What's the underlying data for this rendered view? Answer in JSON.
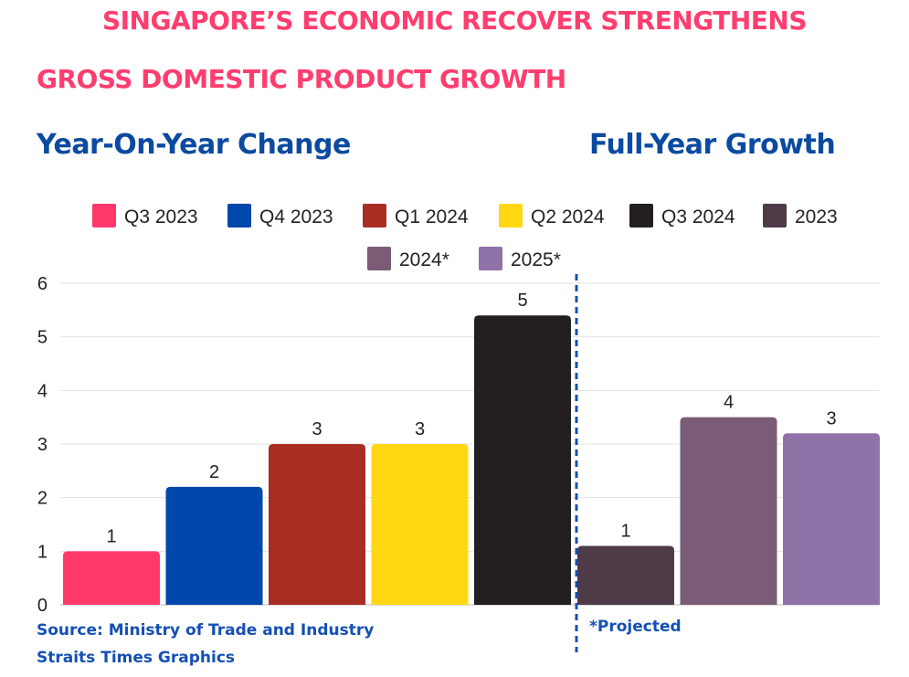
{
  "header": {
    "title": "SINGAPORE’S ECONOMIC RECOVER STRENGTHENS",
    "subtitle": "GROSS DOMESTIC PRODUCT GROWTH",
    "left_heading": "Year-On-Year Change",
    "right_heading": "Full-Year Growth"
  },
  "footer": {
    "source": "Source: Ministry of Trade and Industry",
    "credit": "Straits Times Graphics",
    "projected_note": "*Projected"
  },
  "colors": {
    "title": "#ff3d6e",
    "heading": "#0b4aa0",
    "footnote": "#1450b4",
    "divider": "#1450b4",
    "grid": "#e2e2e2"
  },
  "chart_data": {
    "type": "bar",
    "categories": [
      "Q3 2023",
      "Q4 2023",
      "Q1 2024",
      "Q2 2024",
      "Q3 2024",
      "2023",
      "2024*",
      "2025*"
    ],
    "values": [
      1.0,
      2.2,
      3.0,
      3.0,
      5.4,
      1.1,
      3.5,
      3.2
    ],
    "data_labels": [
      "1",
      "2",
      "3",
      "3",
      "5",
      "1",
      "4",
      "3"
    ],
    "bar_colors": [
      "#ff3a6b",
      "#0047ab",
      "#a82e24",
      "#ffd712",
      "#231f20",
      "#4f3b48",
      "#7a5c77",
      "#8e72a8"
    ],
    "ylim": [
      0,
      6
    ],
    "yticks": [
      "0",
      "1",
      "2",
      "3",
      "4",
      "5",
      "6"
    ],
    "grid": true,
    "legend_position": "top",
    "divider_after_category": 4
  }
}
